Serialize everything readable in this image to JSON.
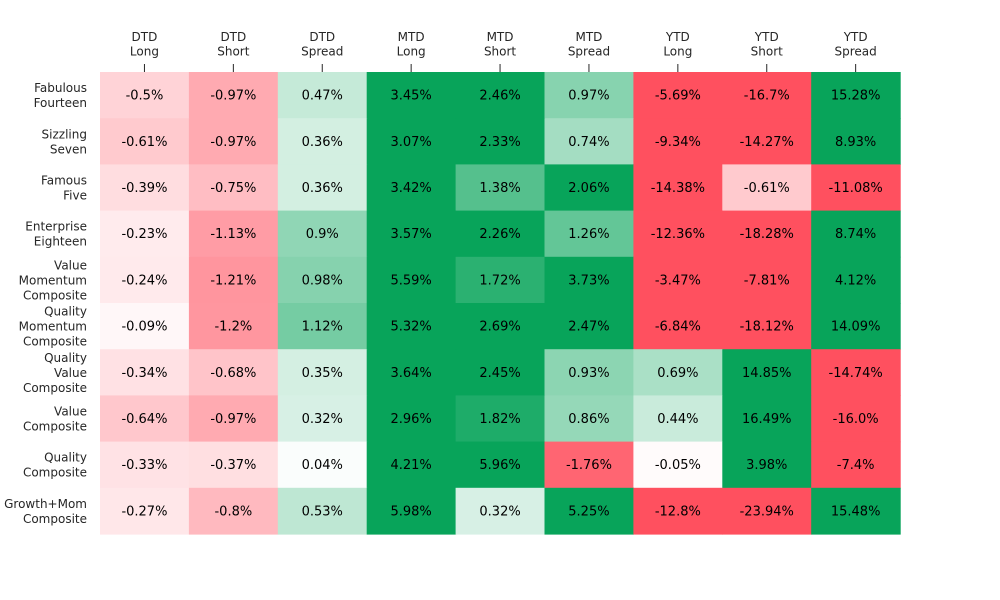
{
  "chart_data": {
    "type": "heatmap",
    "title": "",
    "xlabel": "",
    "ylabel": "",
    "columns": [
      [
        "DTD",
        "Long"
      ],
      [
        "DTD",
        "Short"
      ],
      [
        "DTD",
        "Spread"
      ],
      [
        "MTD",
        "Long"
      ],
      [
        "MTD",
        "Short"
      ],
      [
        "MTD",
        "Spread"
      ],
      [
        "YTD",
        "Long"
      ],
      [
        "YTD",
        "Short"
      ],
      [
        "YTD",
        "Spread"
      ]
    ],
    "rows": [
      [
        "Fabulous",
        "Fourteen"
      ],
      [
        "Sizzling",
        "Seven"
      ],
      [
        "Famous",
        "Five"
      ],
      [
        "Enterprise",
        "Eighteen"
      ],
      [
        "Value",
        "Momentum",
        "Composite"
      ],
      [
        "Quality",
        "Momentum",
        "Composite"
      ],
      [
        "Quality",
        "Value",
        "Composite"
      ],
      [
        "Value",
        "Composite"
      ],
      [
        "Quality",
        "Composite"
      ],
      [
        "Growth+Mom",
        "Composite"
      ]
    ],
    "values": [
      [
        -0.5,
        -0.97,
        0.47,
        3.45,
        2.46,
        0.97,
        -5.69,
        -16.7,
        15.28
      ],
      [
        -0.61,
        -0.97,
        0.36,
        3.07,
        2.33,
        0.74,
        -9.34,
        -14.27,
        8.93
      ],
      [
        -0.39,
        -0.75,
        0.36,
        3.42,
        1.38,
        2.06,
        -14.38,
        -0.61,
        -11.08
      ],
      [
        -0.23,
        -1.13,
        0.9,
        3.57,
        2.26,
        1.26,
        -12.36,
        -18.28,
        8.74
      ],
      [
        -0.24,
        -1.21,
        0.98,
        5.59,
        1.72,
        3.73,
        -3.47,
        -7.81,
        4.12
      ],
      [
        -0.09,
        -1.2,
        1.12,
        5.32,
        2.69,
        2.47,
        -6.84,
        -18.12,
        14.09
      ],
      [
        -0.34,
        -0.68,
        0.35,
        3.64,
        2.45,
        0.93,
        0.69,
        14.85,
        -14.74
      ],
      [
        -0.64,
        -0.97,
        0.32,
        2.96,
        1.82,
        0.86,
        0.44,
        16.49,
        -16.0
      ],
      [
        -0.33,
        -0.37,
        0.04,
        4.21,
        5.96,
        -1.76,
        -0.05,
        3.98,
        -7.4
      ],
      [
        -0.27,
        -0.8,
        0.53,
        5.98,
        0.32,
        5.25,
        -12.8,
        -23.94,
        15.48
      ]
    ],
    "labels": [
      [
        "-0.5%",
        "-0.97%",
        "0.47%",
        "3.45%",
        "2.46%",
        "0.97%",
        "-5.69%",
        "-16.7%",
        "15.28%"
      ],
      [
        "-0.61%",
        "-0.97%",
        "0.36%",
        "3.07%",
        "2.33%",
        "0.74%",
        "-9.34%",
        "-14.27%",
        "8.93%"
      ],
      [
        "-0.39%",
        "-0.75%",
        "0.36%",
        "3.42%",
        "1.38%",
        "2.06%",
        "-14.38%",
        "-0.61%",
        "-11.08%"
      ],
      [
        "-0.23%",
        "-1.13%",
        "0.9%",
        "3.57%",
        "2.26%",
        "1.26%",
        "-12.36%",
        "-18.28%",
        "8.74%"
      ],
      [
        "-0.24%",
        "-1.21%",
        "0.98%",
        "5.59%",
        "1.72%",
        "3.73%",
        "-3.47%",
        "-7.81%",
        "4.12%"
      ],
      [
        "-0.09%",
        "-1.2%",
        "1.12%",
        "5.32%",
        "2.69%",
        "2.47%",
        "-6.84%",
        "-18.12%",
        "14.09%"
      ],
      [
        "-0.34%",
        "-0.68%",
        "0.35%",
        "3.64%",
        "2.45%",
        "0.93%",
        "0.69%",
        "14.85%",
        "-14.74%"
      ],
      [
        "-0.64%",
        "-0.97%",
        "0.32%",
        "2.96%",
        "1.82%",
        "0.86%",
        "0.44%",
        "16.49%",
        "-16.0%"
      ],
      [
        "-0.33%",
        "-0.37%",
        "0.04%",
        "4.21%",
        "5.96%",
        "-1.76%",
        "-0.05%",
        "3.98%",
        "-7.4%"
      ],
      [
        "-0.27%",
        "-0.8%",
        "0.53%",
        "5.98%",
        "0.32%",
        "5.25%",
        "-12.8%",
        "-23.94%",
        "15.48%"
      ]
    ],
    "color_scale": {
      "negative": "#ff505f",
      "neutral": "#ffffff",
      "positive": "#08a45a",
      "saturation_point": 2.0
    },
    "grid": false,
    "legend": "none"
  }
}
